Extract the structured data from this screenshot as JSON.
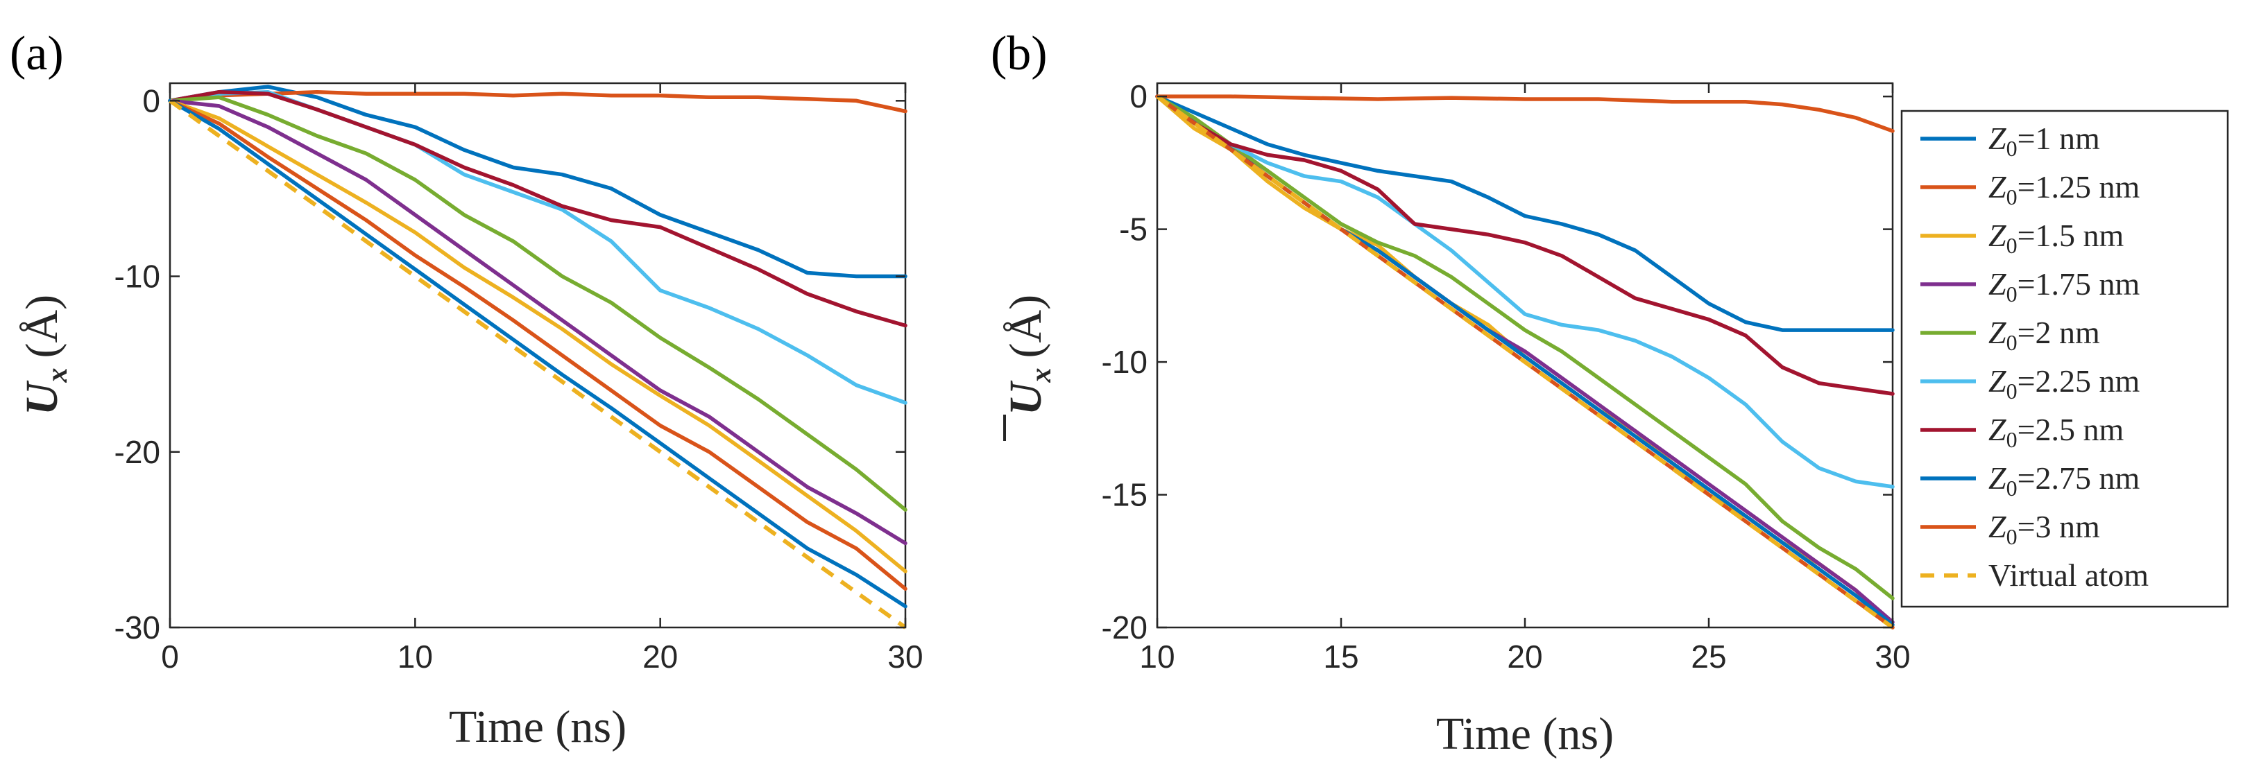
{
  "chart_data": [
    {
      "type": "line",
      "panel_label": "(a)",
      "xlabel": "Time (ns)",
      "ylabel": "U",
      "ylabel_sub": "x",
      "ylabel_unit": "(Å)",
      "xlim": [
        0,
        30
      ],
      "ylim": [
        -30,
        1
      ],
      "xticks": [
        0,
        10,
        20,
        30
      ],
      "xtick_labels": [
        "0",
        "10",
        "20",
        "30"
      ],
      "yticks": [
        0,
        -10,
        -20,
        -30
      ],
      "ytick_labels": [
        "0",
        "-10",
        "-20",
        "-30"
      ],
      "grid": false,
      "series": [
        {
          "color": "#0072BD",
          "dash": false,
          "x": [
            0,
            2,
            4,
            6,
            8,
            10,
            12,
            14,
            16,
            18,
            20,
            22,
            24,
            26,
            28,
            30
          ],
          "y": [
            0,
            0.5,
            0.8,
            0.2,
            -0.8,
            -1.5,
            -2.8,
            -3.8,
            -4.2,
            -5.0,
            -6.5,
            -7.5,
            -8.5,
            -9.8,
            -10.0,
            -10.0
          ]
        },
        {
          "color": "#D95319",
          "dash": false,
          "x": [
            0,
            2,
            4,
            6,
            8,
            10,
            12,
            14,
            16,
            18,
            20,
            22,
            24,
            26,
            28,
            30
          ],
          "y": [
            0,
            0.3,
            0.4,
            0.5,
            0.4,
            0.4,
            0.4,
            0.3,
            0.4,
            0.3,
            0.3,
            0.2,
            0.2,
            0.1,
            0,
            -0.6
          ]
        },
        {
          "color": "#4DBEEE",
          "dash": false,
          "x": [
            0,
            2,
            4,
            6,
            8,
            10,
            12,
            14,
            16,
            18,
            20,
            22,
            24,
            26,
            28,
            30
          ],
          "y": [
            0,
            0.4,
            0.5,
            -0.5,
            -1.5,
            -2.5,
            -4.2,
            -5.2,
            -6.2,
            -8.0,
            -10.8,
            -11.8,
            -13.0,
            -14.5,
            -16.2,
            -17.2
          ]
        },
        {
          "color": "#A2142F",
          "dash": false,
          "x": [
            0,
            2,
            4,
            6,
            8,
            10,
            12,
            14,
            16,
            18,
            20,
            22,
            24,
            26,
            28,
            30
          ],
          "y": [
            0,
            0.5,
            0.4,
            -0.5,
            -1.5,
            -2.5,
            -3.8,
            -4.8,
            -6.0,
            -6.8,
            -7.2,
            -8.4,
            -9.6,
            -11.0,
            -12.0,
            -12.8
          ]
        },
        {
          "color": "#77AC30",
          "dash": false,
          "x": [
            0,
            2,
            4,
            6,
            8,
            10,
            12,
            14,
            16,
            18,
            20,
            22,
            24,
            26,
            28,
            30
          ],
          "y": [
            0,
            0.2,
            -0.8,
            -2.0,
            -3.0,
            -4.5,
            -6.5,
            -8.0,
            -10.0,
            -11.5,
            -13.5,
            -15.2,
            -17.0,
            -19.0,
            -21.0,
            -23.3
          ]
        },
        {
          "color": "#7E2F8E",
          "dash": false,
          "x": [
            0,
            2,
            4,
            6,
            8,
            10,
            12,
            14,
            16,
            18,
            20,
            22,
            24,
            26,
            28,
            30
          ],
          "y": [
            0,
            -0.3,
            -1.5,
            -3.0,
            -4.5,
            -6.5,
            -8.5,
            -10.5,
            -12.5,
            -14.5,
            -16.5,
            -18.0,
            -20.0,
            -22.0,
            -23.5,
            -25.2
          ]
        },
        {
          "color": "#EDB120",
          "dash": false,
          "x": [
            0,
            2,
            4,
            6,
            8,
            10,
            12,
            14,
            16,
            18,
            20,
            22,
            24,
            26,
            28,
            30
          ],
          "y": [
            0,
            -1.0,
            -2.6,
            -4.2,
            -5.8,
            -7.5,
            -9.5,
            -11.2,
            -13.0,
            -15.0,
            -16.8,
            -18.5,
            -20.5,
            -22.5,
            -24.5,
            -26.8
          ]
        },
        {
          "color": "#D95319",
          "dash": false,
          "x": [
            0,
            2,
            4,
            6,
            8,
            10,
            12,
            14,
            16,
            18,
            20,
            22,
            24,
            26,
            28,
            30
          ],
          "y": [
            0,
            -1.3,
            -3.2,
            -5.0,
            -6.8,
            -8.8,
            -10.6,
            -12.5,
            -14.5,
            -16.5,
            -18.5,
            -20.0,
            -22.0,
            -24.0,
            -25.5,
            -27.8
          ]
        },
        {
          "color": "#0072BD",
          "dash": false,
          "x": [
            0,
            2,
            4,
            6,
            8,
            10,
            12,
            14,
            16,
            18,
            20,
            22,
            24,
            26,
            28,
            30
          ],
          "y": [
            0,
            -1.6,
            -3.6,
            -5.6,
            -7.6,
            -9.6,
            -11.6,
            -13.6,
            -15.6,
            -17.5,
            -19.5,
            -21.5,
            -23.5,
            -25.5,
            -27.0,
            -28.8
          ]
        },
        {
          "color": "#EDB120",
          "dash": true,
          "x": [
            0,
            30
          ],
          "y": [
            0,
            -30
          ]
        }
      ]
    },
    {
      "type": "line",
      "panel_label": "(b)",
      "xlabel": "Time (ns)",
      "ylabel": "U",
      "ylabel_sub": "x",
      "ylabel_unit": "(Å)",
      "ylabel_overline": true,
      "xlim": [
        10,
        30
      ],
      "ylim": [
        -20,
        0.5
      ],
      "xticks": [
        10,
        15,
        20,
        25,
        30
      ],
      "xtick_labels": [
        "10",
        "15",
        "20",
        "25",
        "30"
      ],
      "yticks": [
        0,
        -5,
        -10,
        -15,
        -20
      ],
      "ytick_labels": [
        "0",
        "-5",
        "-10",
        "-15",
        "-20"
      ],
      "grid": false,
      "legend_position": "right-outside",
      "series": [
        {
          "name": "Z",
          "name_sub": "0",
          "name_rest": "=1 nm",
          "color": "#0072BD",
          "dash": false,
          "x": [
            10,
            11,
            12,
            13,
            14,
            15,
            16,
            17,
            18,
            19,
            20,
            21,
            22,
            23,
            24,
            25,
            26,
            27,
            28,
            29,
            30
          ],
          "y": [
            0,
            -0.6,
            -1.2,
            -1.8,
            -2.2,
            -2.5,
            -2.8,
            -3.0,
            -3.2,
            -3.8,
            -4.5,
            -4.8,
            -5.2,
            -5.8,
            -6.8,
            -7.8,
            -8.5,
            -8.8,
            -8.8,
            -8.8,
            -8.8
          ]
        },
        {
          "name": "Z",
          "name_sub": "0",
          "name_rest": "=1.25 nm",
          "color": "#D95319",
          "dash": false,
          "x": [
            10,
            12,
            14,
            16,
            18,
            20,
            22,
            24,
            26,
            27,
            28,
            29,
            30
          ],
          "y": [
            0,
            0,
            -0.05,
            -0.1,
            -0.05,
            -0.1,
            -0.1,
            -0.2,
            -0.2,
            -0.3,
            -0.5,
            -0.8,
            -1.3
          ]
        },
        {
          "name": "Z",
          "name_sub": "0",
          "name_rest": "=1.5 nm",
          "color": "#EDB120",
          "dash": false,
          "x": [
            10,
            11,
            12,
            13,
            14,
            15,
            16,
            17,
            18,
            19,
            20,
            21,
            22,
            23,
            24,
            25,
            26,
            27,
            28,
            29,
            30
          ],
          "y": [
            0,
            -1.2,
            -2.0,
            -3.2,
            -4.2,
            -5.0,
            -5.6,
            -6.8,
            -7.8,
            -8.6,
            -9.8,
            -10.8,
            -11.8,
            -12.6,
            -13.8,
            -15.0,
            -15.8,
            -16.8,
            -17.6,
            -18.6,
            -20.0
          ]
        },
        {
          "name": "Z",
          "name_sub": "0",
          "name_rest": "=1.75 nm",
          "color": "#7E2F8E",
          "dash": false,
          "x": [
            10,
            11,
            12,
            13,
            14,
            15,
            16,
            17,
            18,
            19,
            20,
            21,
            22,
            23,
            24,
            25,
            26,
            27,
            28,
            29,
            30
          ],
          "y": [
            0,
            -0.9,
            -1.9,
            -3.0,
            -4.0,
            -5.0,
            -5.8,
            -6.8,
            -7.8,
            -8.8,
            -9.6,
            -10.6,
            -11.6,
            -12.6,
            -13.6,
            -14.6,
            -15.6,
            -16.6,
            -17.6,
            -18.6,
            -19.8
          ]
        },
        {
          "name": "Z",
          "name_sub": "0",
          "name_rest": "=2 nm",
          "color": "#77AC30",
          "dash": false,
          "x": [
            10,
            11,
            12,
            13,
            14,
            15,
            16,
            17,
            18,
            19,
            20,
            21,
            22,
            23,
            24,
            25,
            26,
            27,
            28,
            29,
            30
          ],
          "y": [
            0,
            -0.8,
            -1.8,
            -2.8,
            -3.8,
            -4.8,
            -5.5,
            -6.0,
            -6.8,
            -7.8,
            -8.8,
            -9.6,
            -10.6,
            -11.6,
            -12.6,
            -13.6,
            -14.6,
            -16.0,
            -17.0,
            -17.8,
            -18.9
          ]
        },
        {
          "name": "Z",
          "name_sub": "0",
          "name_rest": "=2.25 nm",
          "color": "#4DBEEE",
          "dash": false,
          "x": [
            10,
            11,
            12,
            13,
            14,
            15,
            16,
            17,
            18,
            19,
            20,
            21,
            22,
            23,
            24,
            25,
            26,
            27,
            28,
            29,
            30
          ],
          "y": [
            0,
            -1.0,
            -1.8,
            -2.5,
            -3.0,
            -3.2,
            -3.8,
            -4.8,
            -5.8,
            -7.0,
            -8.2,
            -8.6,
            -8.8,
            -9.2,
            -9.8,
            -10.6,
            -11.6,
            -13.0,
            -14.0,
            -14.5,
            -14.7
          ]
        },
        {
          "name": "Z",
          "name_sub": "0",
          "name_rest": "=2.5 nm",
          "color": "#A2142F",
          "dash": false,
          "x": [
            10,
            11,
            12,
            13,
            14,
            15,
            16,
            17,
            18,
            19,
            20,
            21,
            22,
            23,
            24,
            25,
            26,
            27,
            28,
            29,
            30
          ],
          "y": [
            0,
            -1.0,
            -1.8,
            -2.2,
            -2.4,
            -2.8,
            -3.5,
            -4.8,
            -5.0,
            -5.2,
            -5.5,
            -6.0,
            -6.8,
            -7.6,
            -8.0,
            -8.4,
            -9.0,
            -10.2,
            -10.8,
            -11.0,
            -11.2
          ]
        },
        {
          "name": "Z",
          "name_sub": "0",
          "name_rest": "=2.75 nm",
          "color": "#0072BD",
          "dash": false,
          "x": [
            10,
            11,
            12,
            13,
            14,
            15,
            16,
            17,
            18,
            19,
            20,
            21,
            22,
            23,
            24,
            25,
            26,
            27,
            28,
            29,
            30
          ],
          "y": [
            0,
            -1.0,
            -2.0,
            -3.0,
            -4.0,
            -5.0,
            -5.8,
            -6.8,
            -7.8,
            -8.8,
            -9.8,
            -10.8,
            -11.8,
            -12.8,
            -13.8,
            -14.8,
            -15.8,
            -16.8,
            -17.8,
            -18.8,
            -19.9
          ]
        },
        {
          "name": "Z",
          "name_sub": "0",
          "name_rest": "=3 nm",
          "color": "#D95319",
          "dash": false,
          "x": [
            10,
            11,
            12,
            13,
            14,
            15,
            16,
            17,
            18,
            19,
            20,
            21,
            22,
            23,
            24,
            25,
            26,
            27,
            28,
            29,
            30
          ],
          "y": [
            0,
            -1.0,
            -2.0,
            -3.0,
            -4.0,
            -5.0,
            -6.0,
            -7.0,
            -8.0,
            -9.0,
            -10.0,
            -11.0,
            -12.0,
            -13.0,
            -14.0,
            -15.0,
            -16.0,
            -17.0,
            -18.0,
            -19.0,
            -20.0
          ]
        },
        {
          "name": "Virtual atom",
          "color": "#EDB120",
          "dash": true,
          "x": [
            10,
            30
          ],
          "y": [
            0,
            -20
          ]
        }
      ]
    }
  ]
}
